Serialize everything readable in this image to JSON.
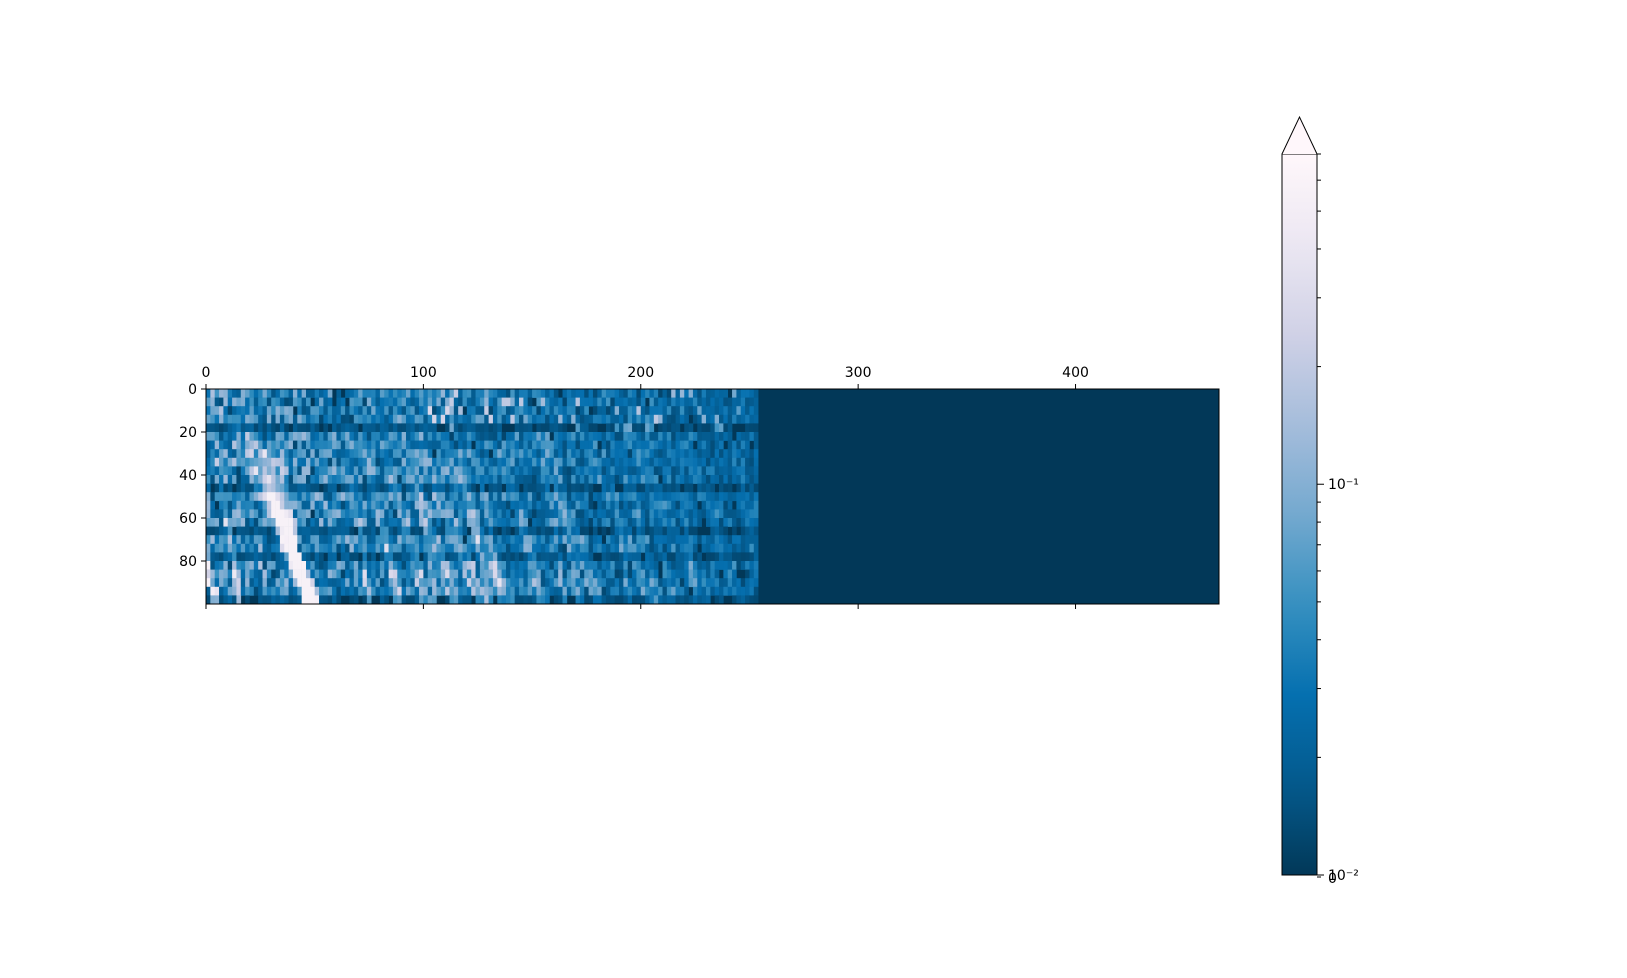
{
  "chart_data": {
    "type": "heatmap",
    "title": "",
    "xlabel": "",
    "ylabel": "",
    "x_axis": {
      "position": "top",
      "range": [
        0,
        466
      ],
      "ticks": [
        0,
        100,
        200,
        300,
        400
      ],
      "tick_labels": [
        "0",
        "100",
        "200",
        "300",
        "400"
      ]
    },
    "y_axis": {
      "inverted": true,
      "range": [
        0,
        100
      ],
      "ticks": [
        0,
        20,
        40,
        60,
        80
      ],
      "tick_labels": [
        "0",
        "20",
        "40",
        "60",
        "80"
      ]
    },
    "rows": 100,
    "cols": 466,
    "active_cols": 254,
    "inactive_value": 0,
    "colormap": "PuBu_r",
    "colormap_stops": [
      "#023858",
      "#045a8d",
      "#0570b0",
      "#3690c0",
      "#74a9cf",
      "#a6bddb",
      "#d0d1e6",
      "#ece7f2",
      "#fff7fb"
    ],
    "pattern": "noisy intensity across columns 0-254 with bright diagonal streaks concentrated at low column indices and high row indices; columns 255-466 are at the minimum value",
    "colorbar": {
      "scale": "log",
      "extend": "max",
      "range": [
        0.01,
        0.7
      ],
      "labeled_ticks": [
        {
          "value": 0.01,
          "label": "10⁻²"
        },
        {
          "value": 0.1,
          "label": "10⁻¹"
        }
      ],
      "extra_label": {
        "value": 0,
        "label": "0"
      },
      "minor_ticks": [
        0.02,
        0.03,
        0.04,
        0.05,
        0.06,
        0.07,
        0.08,
        0.09,
        0.2,
        0.3,
        0.4,
        0.5,
        0.6,
        0.7
      ]
    }
  }
}
